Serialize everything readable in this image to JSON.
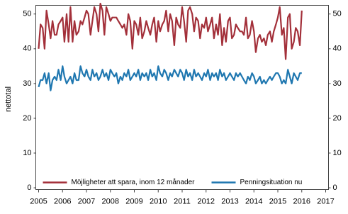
{
  "chart_data": {
    "type": "line",
    "ylabel": "nettotal",
    "x": [
      2005.0,
      2005.08,
      2005.17,
      2005.25,
      2005.33,
      2005.42,
      2005.5,
      2005.58,
      2005.67,
      2005.75,
      2005.83,
      2005.92,
      2006.0,
      2006.08,
      2006.17,
      2006.25,
      2006.33,
      2006.42,
      2006.5,
      2006.58,
      2006.67,
      2006.75,
      2006.83,
      2006.92,
      2007.0,
      2007.08,
      2007.17,
      2007.25,
      2007.33,
      2007.42,
      2007.5,
      2007.58,
      2007.67,
      2007.75,
      2007.83,
      2007.92,
      2008.0,
      2008.08,
      2008.17,
      2008.25,
      2008.33,
      2008.42,
      2008.5,
      2008.58,
      2008.67,
      2008.75,
      2008.83,
      2008.92,
      2009.0,
      2009.08,
      2009.17,
      2009.25,
      2009.33,
      2009.42,
      2009.5,
      2009.58,
      2009.67,
      2009.75,
      2009.83,
      2009.92,
      2010.0,
      2010.08,
      2010.17,
      2010.25,
      2010.33,
      2010.42,
      2010.5,
      2010.58,
      2010.67,
      2010.75,
      2010.83,
      2010.92,
      2011.0,
      2011.08,
      2011.17,
      2011.25,
      2011.33,
      2011.42,
      2011.5,
      2011.58,
      2011.67,
      2011.75,
      2011.83,
      2011.92,
      2012.0,
      2012.08,
      2012.17,
      2012.25,
      2012.33,
      2012.42,
      2012.5,
      2012.58,
      2012.67,
      2012.75,
      2012.83,
      2012.92,
      2013.0,
      2013.08,
      2013.17,
      2013.25,
      2013.33,
      2013.42,
      2013.5,
      2013.58,
      2013.67,
      2013.75,
      2013.83,
      2013.92,
      2014.0,
      2014.08,
      2014.17,
      2014.25,
      2014.33,
      2014.42,
      2014.5,
      2014.58,
      2014.67,
      2014.75,
      2014.83,
      2014.92,
      2015.0,
      2015.08,
      2015.17,
      2015.25,
      2015.33,
      2015.42,
      2015.5,
      2015.58,
      2015.67,
      2015.75,
      2015.83,
      2015.92,
      2016.0
    ],
    "series": [
      {
        "name": "Möjligheter att spara, inom 12 månader",
        "color": "#a3303a",
        "values": [
          40,
          47,
          46,
          40,
          51,
          47,
          43,
          48,
          44,
          44,
          47,
          48,
          49,
          42,
          50,
          42,
          52,
          42,
          48,
          44,
          45,
          48,
          47,
          49,
          51,
          50,
          44,
          48,
          52,
          50,
          45,
          53,
          51,
          44,
          52,
          50,
          48,
          49,
          49,
          49,
          48,
          47,
          46,
          47,
          44,
          50,
          48,
          40,
          48,
          47,
          44,
          49,
          43,
          45,
          48,
          46,
          44,
          47,
          49,
          42,
          48,
          45,
          47,
          48,
          51,
          45,
          50,
          48,
          41,
          49,
          47,
          46,
          52,
          48,
          42,
          51,
          52,
          50,
          45,
          49,
          48,
          43,
          47,
          46,
          49,
          45,
          47,
          49,
          43,
          47,
          44,
          50,
          41,
          46,
          42,
          48,
          49,
          43,
          44,
          47,
          46,
          45,
          45,
          44,
          49,
          43,
          44,
          48,
          45,
          39,
          43,
          44,
          42,
          43,
          41,
          44,
          45,
          42,
          45,
          47,
          49,
          52,
          44,
          46,
          37,
          49,
          50,
          40,
          42,
          46,
          45,
          41,
          51
        ]
      },
      {
        "name": "Penningsituation nu",
        "color": "#1f77b0",
        "values": [
          29,
          31,
          31,
          33,
          30,
          33,
          28,
          31,
          32,
          31,
          34,
          31,
          35,
          32,
          30,
          31,
          32,
          30,
          33,
          31,
          31,
          35,
          33,
          32,
          34,
          32,
          31,
          34,
          32,
          33,
          31,
          32,
          34,
          32,
          33,
          31,
          34,
          33,
          32,
          33,
          30,
          32,
          31,
          33,
          32,
          34,
          31,
          32,
          33,
          32,
          34,
          31,
          33,
          32,
          33,
          31,
          34,
          32,
          33,
          31,
          35,
          33,
          32,
          34,
          33,
          31,
          33,
          32,
          34,
          33,
          32,
          34,
          33,
          31,
          34,
          32,
          33,
          31,
          34,
          32,
          33,
          32,
          31,
          33,
          32,
          34,
          31,
          33,
          32,
          33,
          31,
          34,
          32,
          33,
          31,
          32,
          33,
          32,
          31,
          33,
          32,
          33,
          32,
          31,
          30,
          32,
          31,
          33,
          32,
          30,
          31,
          32,
          30,
          31,
          30,
          31,
          32,
          31,
          32,
          33,
          33,
          32,
          30,
          31,
          30,
          34,
          32,
          30,
          33,
          32,
          31,
          33,
          33
        ]
      }
    ],
    "xlim": [
      2005,
      2017
    ],
    "xticks": [
      2005,
      2006,
      2007,
      2008,
      2009,
      2010,
      2011,
      2012,
      2013,
      2014,
      2015,
      2016,
      2017
    ],
    "ylim": [
      -0.5,
      52.5
    ],
    "yticks": [
      0,
      10,
      20,
      30,
      40,
      50
    ],
    "y2lim": [
      -0.5,
      52.5
    ],
    "y2ticks": [
      0,
      10,
      20,
      30,
      40,
      50
    ],
    "legend": "bottom",
    "grid": false
  }
}
